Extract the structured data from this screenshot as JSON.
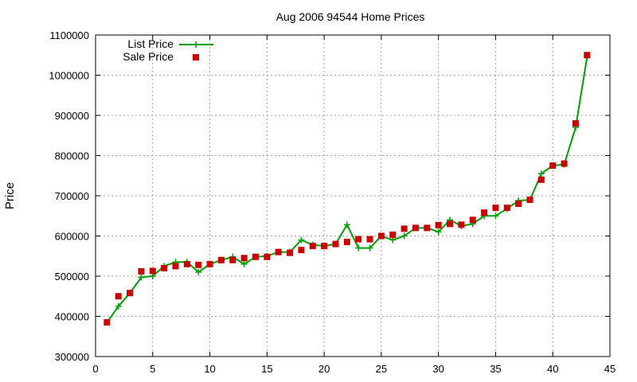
{
  "chart_data": {
    "type": "line",
    "title": "Aug 2006 94544 Home Prices",
    "xlabel": "",
    "ylabel": "Price",
    "xlim": [
      0,
      45
    ],
    "ylim": [
      300000,
      1100000
    ],
    "xticks": [
      0,
      5,
      10,
      15,
      20,
      25,
      30,
      35,
      40,
      45
    ],
    "yticks": [
      300000,
      400000,
      500000,
      600000,
      700000,
      800000,
      900000,
      1000000,
      1100000
    ],
    "grid": true,
    "legend_position": "top-left",
    "series": [
      {
        "name": "List Price",
        "style": "line-with-plus-markers",
        "color": "#00a000",
        "x": [
          1,
          2,
          3,
          4,
          5,
          6,
          7,
          8,
          9,
          10,
          11,
          12,
          13,
          14,
          15,
          16,
          17,
          18,
          19,
          20,
          21,
          22,
          23,
          24,
          25,
          26,
          27,
          28,
          29,
          30,
          31,
          32,
          33,
          34,
          35,
          36,
          37,
          38,
          39,
          40,
          41,
          42,
          43
        ],
        "y": [
          385000,
          425000,
          458000,
          497000,
          500000,
          525000,
          535000,
          535000,
          510000,
          530000,
          540000,
          548000,
          530000,
          548000,
          550000,
          560000,
          560000,
          590000,
          578000,
          575000,
          580000,
          628000,
          570000,
          570000,
          600000,
          590000,
          600000,
          620000,
          620000,
          610000,
          640000,
          625000,
          630000,
          650000,
          650000,
          668000,
          688000,
          690000,
          755000,
          775000,
          778000,
          870000,
          1045000
        ]
      },
      {
        "name": "Sale Price",
        "style": "square-markers",
        "color": "#cc0000",
        "x": [
          1,
          2,
          3,
          4,
          5,
          6,
          7,
          8,
          9,
          10,
          11,
          12,
          13,
          14,
          15,
          16,
          17,
          18,
          19,
          20,
          21,
          22,
          23,
          24,
          25,
          26,
          27,
          28,
          29,
          30,
          31,
          32,
          33,
          34,
          35,
          36,
          37,
          38,
          39,
          40,
          41,
          42,
          43
        ],
        "y": [
          385000,
          450000,
          458000,
          512000,
          513000,
          520000,
          525000,
          530000,
          528000,
          530000,
          540000,
          540000,
          545000,
          548000,
          548000,
          560000,
          558000,
          565000,
          575000,
          575000,
          580000,
          585000,
          592000,
          592000,
          600000,
          603000,
          618000,
          620000,
          620000,
          627000,
          630000,
          628000,
          640000,
          658000,
          670000,
          670000,
          680000,
          690000,
          740000,
          775000,
          780000,
          880000,
          1050000
        ]
      }
    ]
  }
}
